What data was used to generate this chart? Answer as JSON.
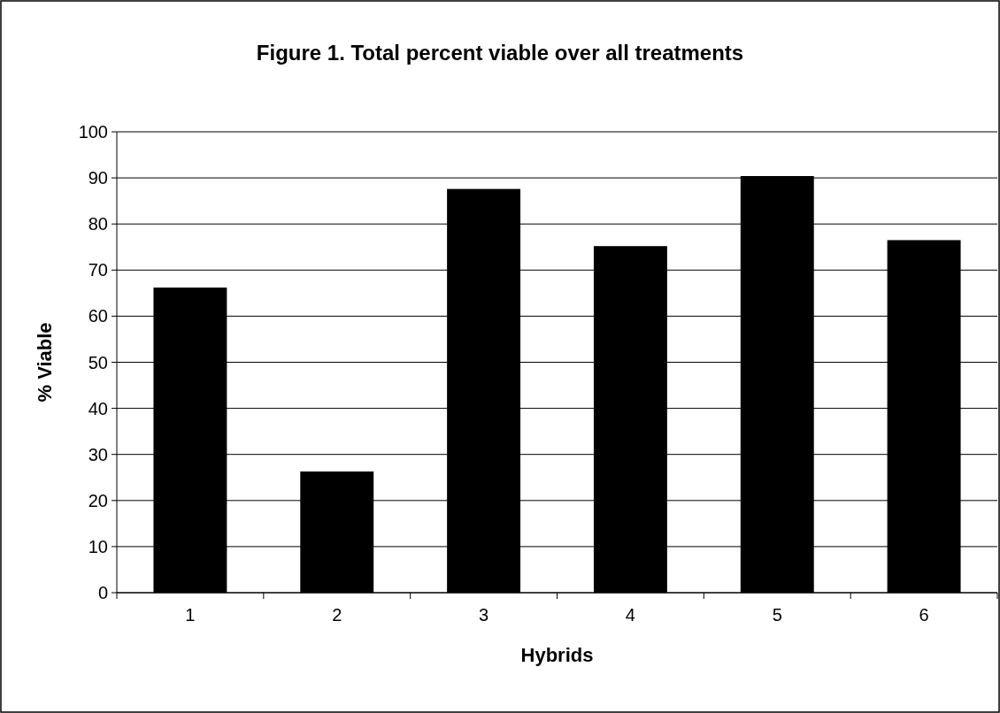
{
  "chart_data": {
    "type": "bar",
    "title": "Figure 1. Total percent viable over all treatments",
    "xlabel": "Hybrids",
    "ylabel": "% Viable",
    "categories": [
      "1",
      "2",
      "3",
      "4",
      "5",
      "6"
    ],
    "values": [
      66.2,
      26.3,
      87.6,
      75.2,
      90.4,
      76.5
    ],
    "color": "#000000",
    "ylim": [
      0,
      100
    ],
    "yticks": [
      0,
      10,
      20,
      30,
      40,
      50,
      60,
      70,
      80,
      90,
      100
    ],
    "grid": "y"
  }
}
